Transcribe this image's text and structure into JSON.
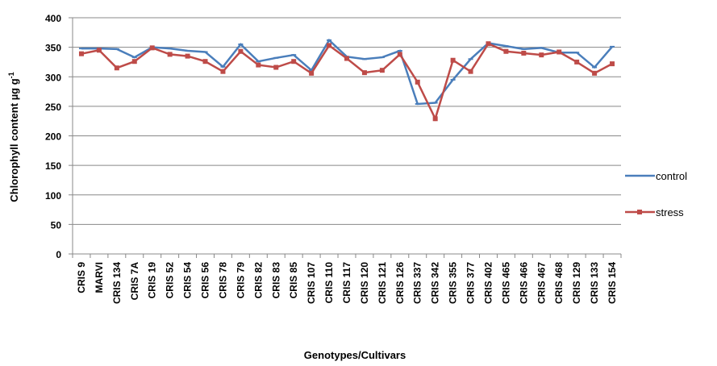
{
  "chart_data": {
    "type": "line",
    "x_label": "Genotypes/Cultivars",
    "y_label": "Chlorophyll content µg g",
    "y_label_sup": "-1",
    "categories": [
      "CRIS 9",
      "MARVI",
      "CRIS 134",
      "CRIS 7A",
      "CRIS 19",
      "CRIS 52",
      "CRIS 54",
      "CRIS 56",
      "CRIS 78",
      "CRIS 79",
      "CRIS 82",
      "CRIS 83",
      "CRIS 85",
      "CRIS 107",
      "CRIS 110",
      "CRIS 117",
      "CRIS 120",
      "CRIS 121",
      "CRIS 126",
      "CRIS 337",
      "CRIS 342",
      "CRIS 355",
      "CRIS 377",
      "CRIS 402",
      "CRIS 465",
      "CRIS 466",
      "CRIS 467",
      "CRIS 468",
      "CRIS 129",
      "CRIS 133",
      "CRIS 154"
    ],
    "series": [
      {
        "name": "control",
        "color": "#4a7ebb",
        "values": [
          348,
          348,
          347,
          333,
          350,
          348,
          344,
          342,
          317,
          355,
          326,
          332,
          337,
          311,
          362,
          334,
          330,
          333,
          344,
          254,
          256,
          295,
          330,
          357,
          352,
          347,
          349,
          341,
          341,
          316,
          351
        ]
      },
      {
        "name": "stress",
        "color": "#be4b48",
        "values": [
          339,
          345,
          315,
          326,
          349,
          338,
          335,
          326,
          309,
          343,
          320,
          316,
          326,
          306,
          353,
          331,
          307,
          311,
          338,
          291,
          229,
          328,
          309,
          356,
          343,
          340,
          337,
          342,
          325,
          306,
          322
        ]
      }
    ],
    "ylim": [
      0,
      400
    ],
    "yticks": [
      0,
      50,
      100,
      150,
      200,
      250,
      300,
      350,
      400
    ],
    "grid": true,
    "legend": "right"
  }
}
